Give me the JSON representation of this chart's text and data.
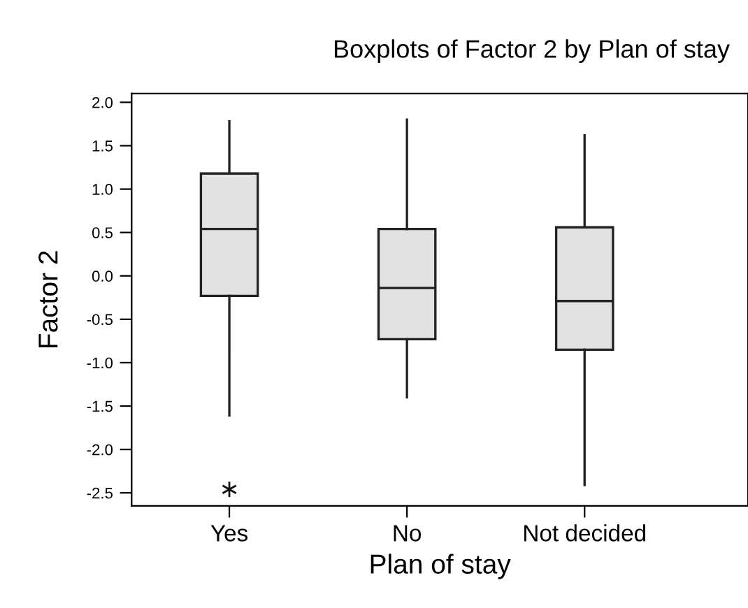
{
  "chart_data": {
    "type": "box",
    "title": "Boxplots of Factor 2 by Plan of stay",
    "xlabel": "Plan of stay",
    "ylabel": "Factor 2",
    "categories": [
      "Yes",
      "No",
      "Not decided"
    ],
    "boxes": [
      {
        "low": -1.61,
        "q1": -0.23,
        "median": 0.54,
        "q3": 1.18,
        "high": 1.78,
        "outliers": [
          -2.46
        ]
      },
      {
        "low": -1.4,
        "q1": -0.73,
        "median": -0.14,
        "q3": 0.54,
        "high": 1.8
      },
      {
        "low": -2.41,
        "q1": -0.85,
        "median": -0.29,
        "q3": 0.56,
        "high": 1.62
      }
    ],
    "color": "#e2e2e2",
    "marker": "star",
    "ylim": [
      -2.65,
      2.1
    ],
    "yticks": [
      {
        "value": -2.5,
        "label": "-2.5"
      },
      {
        "value": -2.0,
        "label": "-2.0"
      },
      {
        "value": -1.5,
        "label": "-1.5"
      },
      {
        "value": -1.0,
        "label": "-1.0"
      },
      {
        "value": -0.5,
        "label": "-0.5"
      },
      {
        "value": 0.0,
        "label": "0.0"
      },
      {
        "value": 0.5,
        "label": "0.5"
      },
      {
        "value": 1.0,
        "label": "1.0"
      },
      {
        "value": 1.5,
        "label": "1.5"
      },
      {
        "value": 2.0,
        "label": "2.0"
      }
    ],
    "grid": false
  }
}
